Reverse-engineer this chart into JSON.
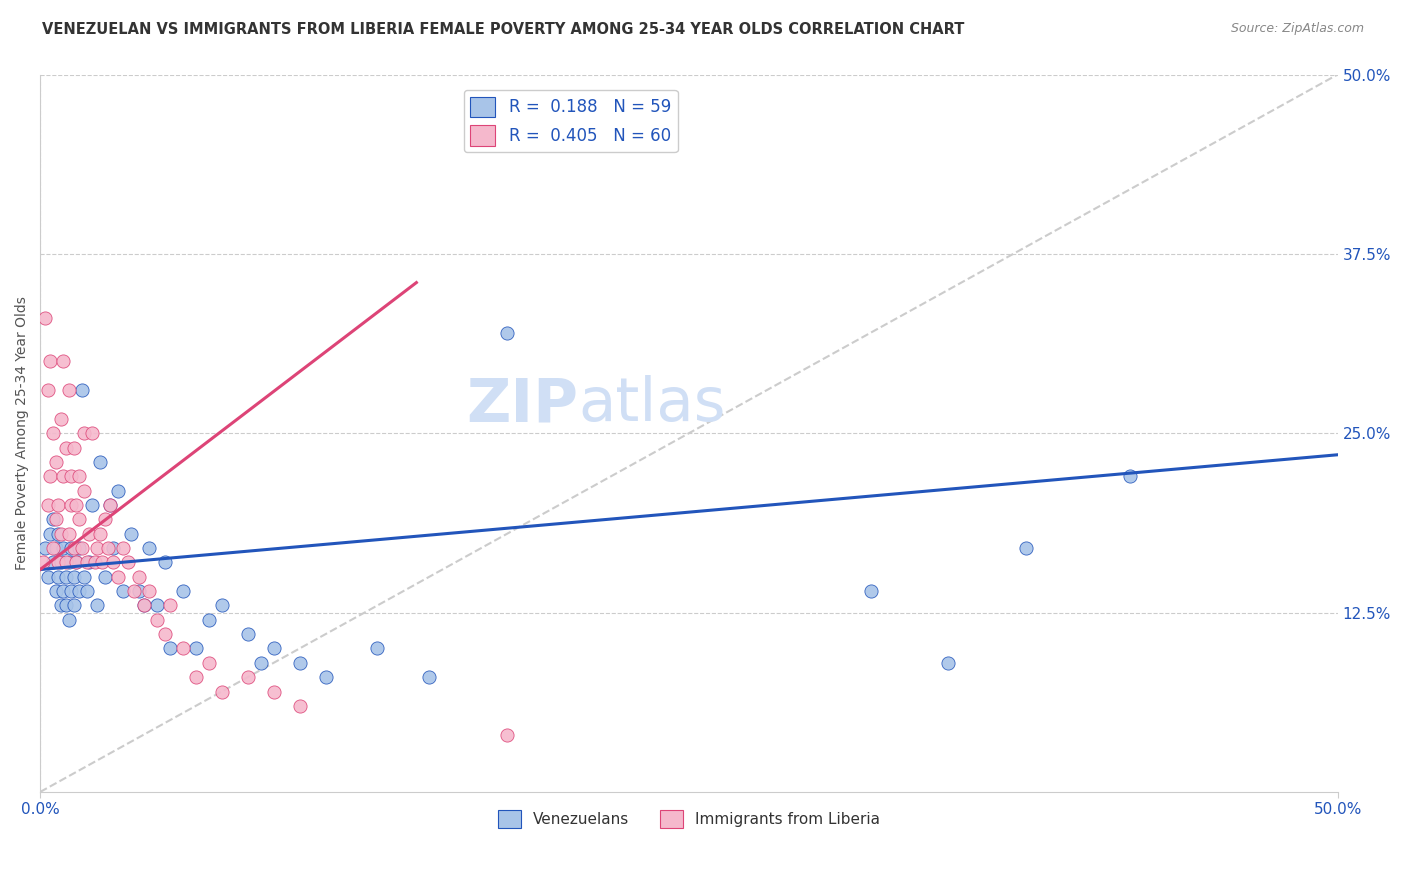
{
  "title": "VENEZUELAN VS IMMIGRANTS FROM LIBERIA FEMALE POVERTY AMONG 25-34 YEAR OLDS CORRELATION CHART",
  "source": "Source: ZipAtlas.com",
  "ylabel": "Female Poverty Among 25-34 Year Olds",
  "right_yticks": [
    "50.0%",
    "37.5%",
    "25.0%",
    "12.5%"
  ],
  "right_ytick_vals": [
    0.5,
    0.375,
    0.25,
    0.125
  ],
  "blue_color": "#a8c4e8",
  "pink_color": "#f5b8cc",
  "blue_line_color": "#2255bb",
  "pink_line_color": "#dd4477",
  "diag_line_color": "#cccccc",
  "watermark_zip": "ZIP",
  "watermark_atlas": "atlas",
  "watermark_color": "#d0dff5",
  "blue_R": 0.188,
  "pink_R": 0.405,
  "blue_N": 59,
  "pink_N": 60,
  "xmin": 0.0,
  "xmax": 0.5,
  "ymin": 0.0,
  "ymax": 0.5,
  "blue_scatter_x": [
    0.002,
    0.003,
    0.004,
    0.005,
    0.005,
    0.006,
    0.006,
    0.007,
    0.007,
    0.008,
    0.008,
    0.009,
    0.009,
    0.01,
    0.01,
    0.011,
    0.011,
    0.012,
    0.012,
    0.013,
    0.013,
    0.014,
    0.015,
    0.015,
    0.016,
    0.017,
    0.018,
    0.019,
    0.02,
    0.022,
    0.023,
    0.025,
    0.027,
    0.028,
    0.03,
    0.032,
    0.035,
    0.038,
    0.04,
    0.042,
    0.045,
    0.048,
    0.05,
    0.055,
    0.06,
    0.065,
    0.07,
    0.08,
    0.085,
    0.09,
    0.1,
    0.11,
    0.13,
    0.15,
    0.18,
    0.32,
    0.35,
    0.38,
    0.42
  ],
  "blue_scatter_y": [
    0.17,
    0.15,
    0.18,
    0.16,
    0.19,
    0.14,
    0.17,
    0.15,
    0.18,
    0.13,
    0.16,
    0.14,
    0.17,
    0.13,
    0.15,
    0.12,
    0.16,
    0.14,
    0.17,
    0.13,
    0.15,
    0.16,
    0.14,
    0.17,
    0.28,
    0.15,
    0.14,
    0.16,
    0.2,
    0.13,
    0.23,
    0.15,
    0.2,
    0.17,
    0.21,
    0.14,
    0.18,
    0.14,
    0.13,
    0.17,
    0.13,
    0.16,
    0.1,
    0.14,
    0.1,
    0.12,
    0.13,
    0.11,
    0.09,
    0.1,
    0.09,
    0.08,
    0.1,
    0.08,
    0.32,
    0.14,
    0.09,
    0.17,
    0.22
  ],
  "pink_scatter_x": [
    0.001,
    0.002,
    0.003,
    0.003,
    0.004,
    0.004,
    0.005,
    0.005,
    0.006,
    0.006,
    0.007,
    0.007,
    0.008,
    0.008,
    0.009,
    0.009,
    0.01,
    0.01,
    0.011,
    0.011,
    0.012,
    0.012,
    0.013,
    0.013,
    0.014,
    0.014,
    0.015,
    0.015,
    0.016,
    0.017,
    0.017,
    0.018,
    0.019,
    0.02,
    0.021,
    0.022,
    0.023,
    0.024,
    0.025,
    0.026,
    0.027,
    0.028,
    0.03,
    0.032,
    0.034,
    0.036,
    0.038,
    0.04,
    0.042,
    0.045,
    0.048,
    0.05,
    0.055,
    0.06,
    0.065,
    0.07,
    0.08,
    0.09,
    0.1,
    0.18
  ],
  "pink_scatter_y": [
    0.16,
    0.33,
    0.28,
    0.2,
    0.22,
    0.3,
    0.17,
    0.25,
    0.19,
    0.23,
    0.16,
    0.2,
    0.18,
    0.26,
    0.22,
    0.3,
    0.16,
    0.24,
    0.18,
    0.28,
    0.2,
    0.22,
    0.17,
    0.24,
    0.16,
    0.2,
    0.19,
    0.22,
    0.17,
    0.25,
    0.21,
    0.16,
    0.18,
    0.25,
    0.16,
    0.17,
    0.18,
    0.16,
    0.19,
    0.17,
    0.2,
    0.16,
    0.15,
    0.17,
    0.16,
    0.14,
    0.15,
    0.13,
    0.14,
    0.12,
    0.11,
    0.13,
    0.1,
    0.08,
    0.09,
    0.07,
    0.08,
    0.07,
    0.06,
    0.04
  ],
  "blue_line_x0": 0.0,
  "blue_line_x1": 0.5,
  "blue_line_y0": 0.155,
  "blue_line_y1": 0.235,
  "pink_line_x0": 0.0,
  "pink_line_x1": 0.145,
  "pink_line_y0": 0.155,
  "pink_line_y1": 0.355
}
